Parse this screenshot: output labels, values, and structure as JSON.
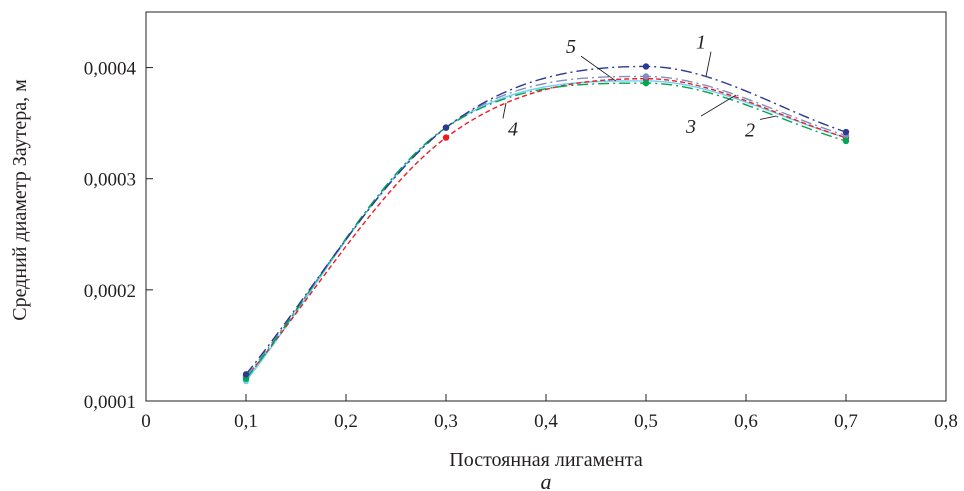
{
  "chart_data": {
    "type": "line",
    "title": "",
    "xlabel": "Постоянная лигамента",
    "ylabel": "Средний диаметр Заутера, м",
    "panel_label": "а",
    "xlim": [
      0,
      0.8
    ],
    "ylim": [
      0.0001,
      0.00045
    ],
    "x_ticks": [
      0,
      0.1,
      0.2,
      0.3,
      0.4,
      0.5,
      0.6,
      0.7,
      0.8
    ],
    "x_tick_labels": [
      "0",
      "0,1",
      "0,2",
      "0,3",
      "0,4",
      "0,5",
      "0,6",
      "0,7",
      "0,8"
    ],
    "y_ticks": [
      0.0001,
      0.0002,
      0.0003,
      0.0004
    ],
    "y_tick_labels": [
      "0,0001",
      "0,0002",
      "0,0003",
      "0,0004"
    ],
    "grid": false,
    "legend": "none",
    "x": [
      0.1,
      0.3,
      0.5,
      0.7
    ],
    "series": [
      {
        "name": "1",
        "color": "#2b3990",
        "dash": "dashdot",
        "values": [
          0.000124,
          0.000346,
          0.000401,
          0.000342
        ]
      },
      {
        "name": "2",
        "color": "#00a651",
        "dash": "dashdot",
        "values": [
          0.00012,
          0.000346,
          0.000386,
          0.000334
        ]
      },
      {
        "name": "3",
        "color": "#7f8fbf",
        "dash": "dashdot",
        "values": [
          0.000122,
          0.000346,
          0.000392,
          0.000339
        ]
      },
      {
        "name": "4",
        "color": "#ed1c24",
        "dash": "dashed",
        "values": [
          0.000121,
          0.000337,
          0.00039,
          0.000337
        ]
      },
      {
        "name": "5",
        "color": "#6dcff6",
        "dash": "solid",
        "values": [
          0.000118,
          0.000346,
          0.000388,
          0.000337
        ]
      }
    ],
    "annotations": [
      {
        "text": "1",
        "series": "1",
        "at_x": 0.56,
        "label_x": 0.555,
        "label_y": 0.000417
      },
      {
        "text": "5",
        "series": "5",
        "at_x": 0.47,
        "label_x": 0.425,
        "label_y": 0.000413
      },
      {
        "text": "4",
        "series": "4",
        "at_x": 0.36,
        "label_x": 0.367,
        "label_y": 0.000339
      },
      {
        "text": "3",
        "series": "3",
        "at_x": 0.59,
        "label_x": 0.545,
        "label_y": 0.000341
      },
      {
        "text": "2",
        "series": "2",
        "at_x": 0.63,
        "label_x": 0.604,
        "label_y": 0.000338
      }
    ]
  }
}
